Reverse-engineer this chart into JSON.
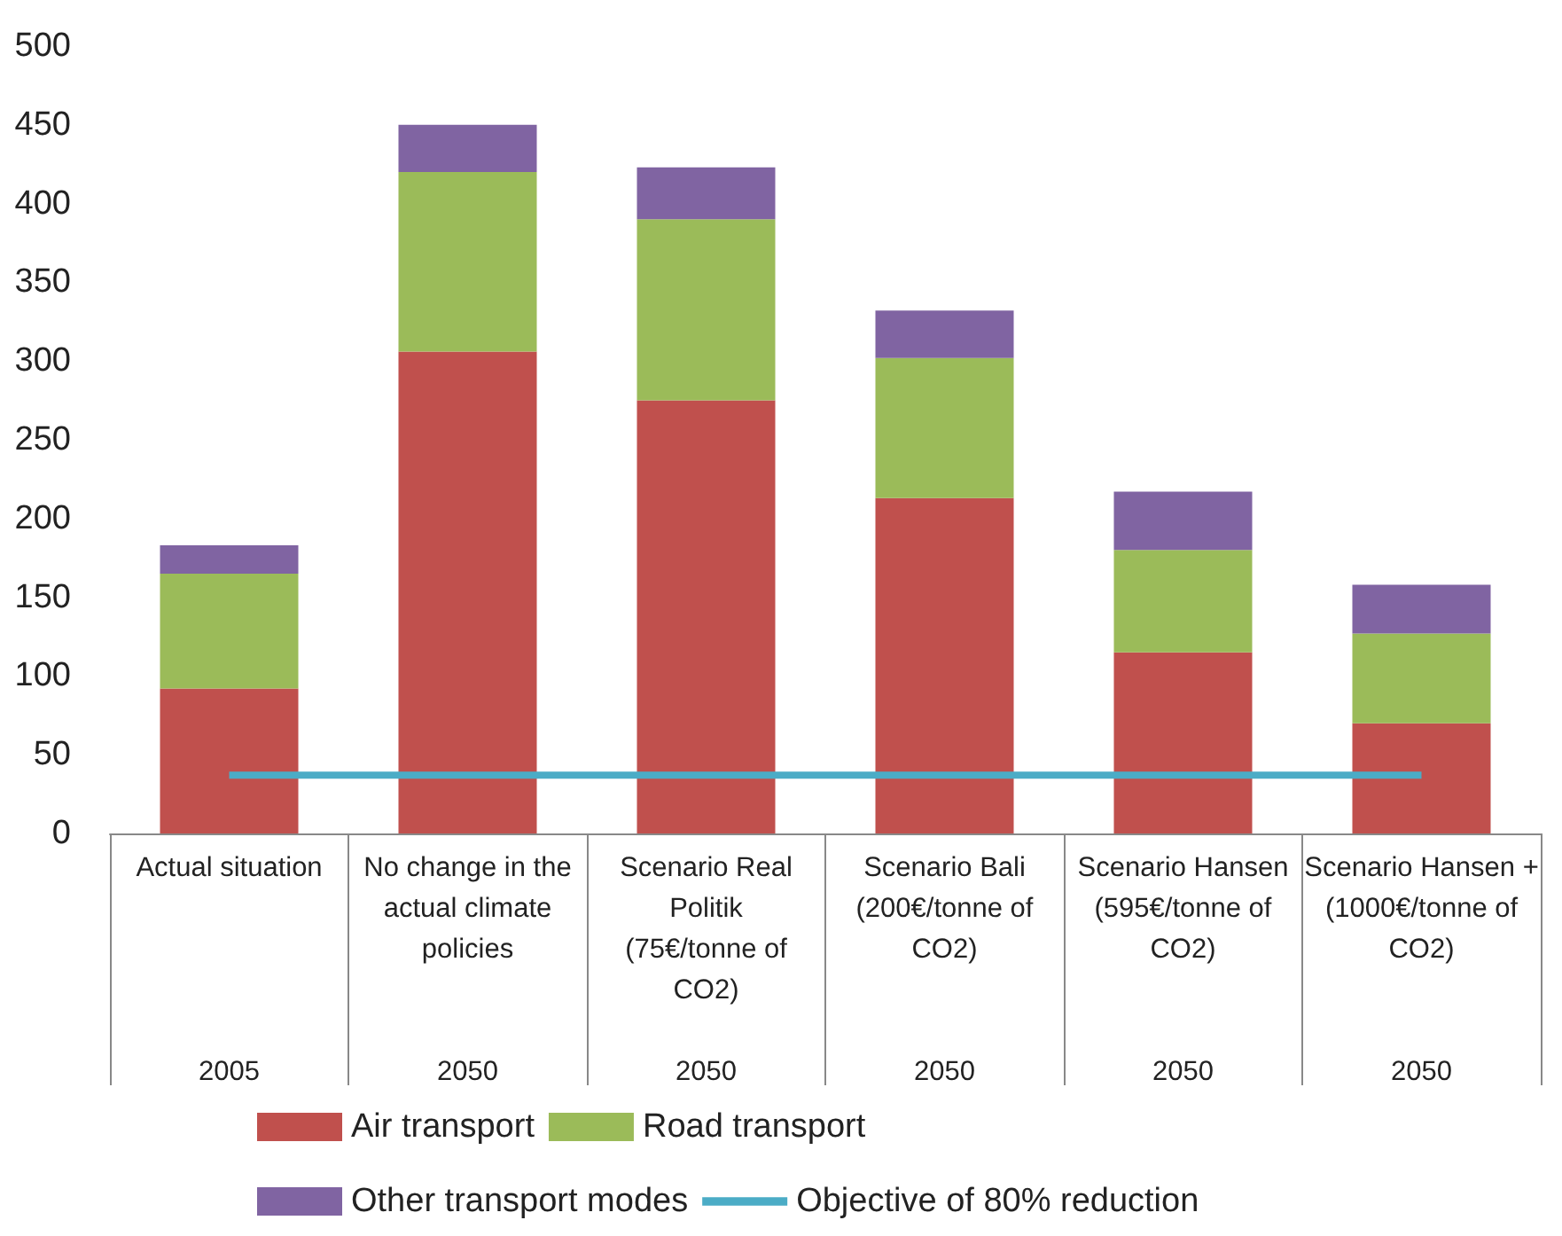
{
  "chart_data": {
    "type": "bar",
    "stacked": true,
    "categories": [
      "Actual situation\n2005",
      "No change in the actual climate policies\n2050",
      "Scenario Real Politik (75€/tonne of CO2)\n2050",
      "Scenario Bali (200€/tonne of CO2)\n2050",
      "Scenario Hansen (595€/tonne of CO2)\n2050",
      "Scenario Hansen + (1000€/tonne of CO2)\n2050"
    ],
    "series": [
      {
        "name": "Air transport",
        "color": "#c0504d",
        "values": [
          92,
          306,
          275,
          213,
          115,
          70
        ]
      },
      {
        "name": "Road transport",
        "color": "#9bbb59",
        "values": [
          73,
          114,
          115,
          89,
          65,
          57
        ]
      },
      {
        "name": "Other transport modes",
        "color": "#8064a2",
        "values": [
          18,
          30,
          33,
          30,
          37,
          31
        ]
      },
      {
        "name": "Objective of 80% reduction",
        "type": "line",
        "color": "#4bacc6",
        "marker": "none",
        "values": [
          37,
          37,
          37,
          37,
          37,
          37
        ]
      }
    ],
    "ylim": [
      0,
      500
    ],
    "yticks": [
      0,
      50,
      100,
      150,
      200,
      250,
      300,
      350,
      400,
      450,
      500
    ],
    "grid": false,
    "legend": "bottom"
  }
}
